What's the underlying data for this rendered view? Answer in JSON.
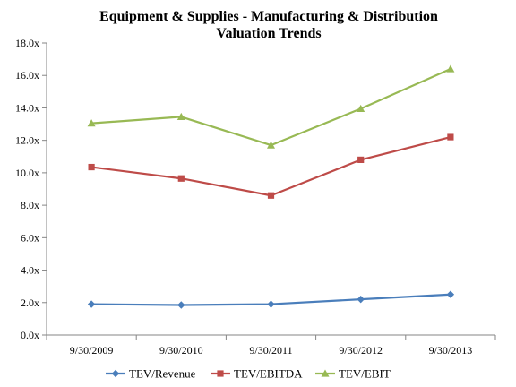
{
  "chart_data": {
    "type": "line",
    "title": "Equipment & Supplies - Manufacturing & Distribution",
    "subtitle": "Valuation Trends",
    "xlabel": "",
    "ylabel": "",
    "categories": [
      "9/30/2009",
      "9/30/2010",
      "9/30/2011",
      "9/30/2012",
      "9/30/2013"
    ],
    "ylim": [
      0,
      18
    ],
    "yticks": [
      0,
      2,
      4,
      6,
      8,
      10,
      12,
      14,
      16,
      18
    ],
    "ytick_labels": [
      "0.0x",
      "2.0x",
      "4.0x",
      "6.0x",
      "8.0x",
      "10.0x",
      "12.0x",
      "14.0x",
      "16.0x",
      "18.0x"
    ],
    "grid": false,
    "legend_position": "bottom",
    "series": [
      {
        "name": "TEV/Revenue",
        "marker": "diamond",
        "color": "#4a7ebb",
        "values": [
          1.9,
          1.85,
          1.9,
          2.2,
          2.5
        ]
      },
      {
        "name": "TEV/EBITDA",
        "marker": "square",
        "color": "#be4b48",
        "values": [
          10.35,
          9.65,
          8.6,
          10.8,
          12.2
        ]
      },
      {
        "name": "TEV/EBIT",
        "marker": "triangle",
        "color": "#98b954",
        "values": [
          13.05,
          13.45,
          11.7,
          13.95,
          16.4
        ]
      }
    ]
  }
}
